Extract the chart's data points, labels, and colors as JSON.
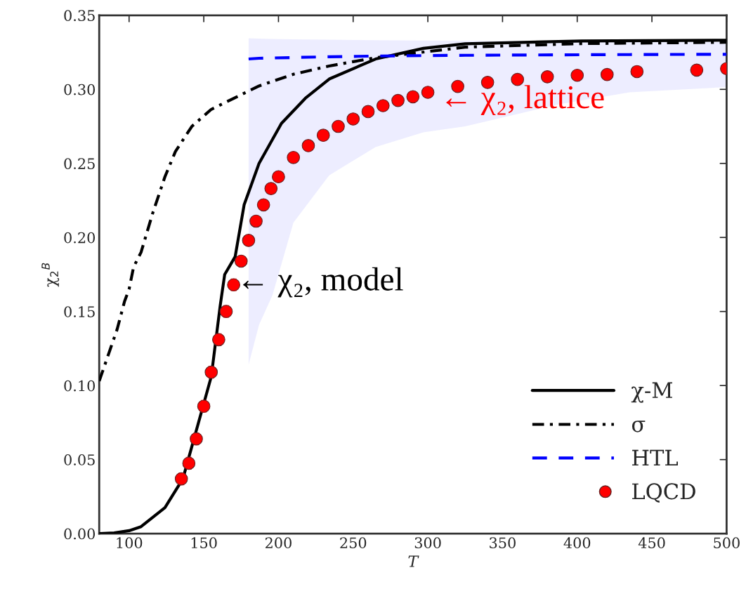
{
  "chart_data": {
    "type": "line",
    "xlabel": "T",
    "ylabel": "χ$_{2}$$^{B}$",
    "xlim": [
      80,
      500
    ],
    "ylim": [
      0,
      0.35
    ],
    "xticks": [
      100,
      150,
      200,
      250,
      300,
      350,
      400,
      450,
      500
    ],
    "yticks": [
      {
        "value": 0,
        "label": "0.00"
      },
      {
        "value": 0.05,
        "label": "0.05"
      },
      {
        "value": 0.1,
        "label": "0.10"
      },
      {
        "value": 0.15,
        "label": "0.15"
      },
      {
        "value": 0.2,
        "label": "0.20"
      },
      {
        "value": 0.25,
        "label": "0.25"
      },
      {
        "value": 0.3,
        "label": "0.30"
      },
      {
        "value": 0.35,
        "label": "0.35"
      }
    ],
    "grid": false,
    "legend": "bottom right",
    "series": [
      {
        "name": "χ-M",
        "color": "#000000",
        "line_style": "solid",
        "x": [
          80,
          90,
          100,
          108,
          124,
          136,
          155,
          161,
          164,
          171,
          177,
          187,
          202,
          218,
          234,
          265,
          297,
          325,
          403,
          500
        ],
        "values": [
          0,
          0.0005,
          0.002,
          0.0047,
          0.0175,
          0.037,
          0.106,
          0.154,
          0.175,
          0.187,
          0.222,
          0.25,
          0.277,
          0.294,
          0.307,
          0.3205,
          0.3277,
          0.3308,
          0.3327,
          0.3332
        ]
      },
      {
        "name": "σ",
        "color": "#000000",
        "line_style": "dashdot",
        "x": [
          80,
          92,
          97,
          100,
          103,
          108,
          116,
          124,
          131,
          142,
          155,
          171,
          187,
          210,
          234,
          265,
          325,
          403,
          500
        ],
        "values": [
          0.103,
          0.138,
          0.157,
          0.165,
          0.18,
          0.19,
          0.217,
          0.241,
          0.258,
          0.275,
          0.2865,
          0.2944,
          0.3023,
          0.3102,
          0.3158,
          0.3214,
          0.3285,
          0.3309,
          0.3318
        ]
      },
      {
        "name": "HTL",
        "color": "#0000ff",
        "line_style": "dashed",
        "x": [
          180,
          187,
          196,
          210,
          234,
          265,
          297,
          325,
          388,
          435,
          500
        ],
        "values": [
          0.3205,
          0.321,
          0.3212,
          0.3215,
          0.322,
          0.3225,
          0.3228,
          0.323,
          0.3233,
          0.3235,
          0.3237
        ],
        "lower": [
          0.114,
          0.141,
          0.161,
          0.21,
          0.242,
          0.261,
          0.271,
          0.275,
          0.29,
          0.298,
          0.3015
        ],
        "upper": [
          0.3345,
          0.3343,
          0.334,
          0.3338,
          0.3335,
          0.3332,
          0.333,
          0.3328,
          0.3325,
          0.3322,
          0.332
        ]
      },
      {
        "name": "LQCD",
        "type": "scatter",
        "color": "#ff0000",
        "marker": "circle",
        "x": [
          135,
          140,
          145,
          150,
          155,
          160,
          165,
          170,
          175,
          180,
          185,
          190,
          195,
          200,
          210,
          220,
          230,
          240,
          250,
          260,
          270,
          280,
          290,
          300,
          320,
          340,
          360,
          380,
          400,
          420,
          440,
          480,
          500
        ],
        "values": [
          0.037,
          0.0475,
          0.064,
          0.086,
          0.109,
          0.131,
          0.15,
          0.168,
          0.184,
          0.198,
          0.211,
          0.222,
          0.233,
          0.241,
          0.254,
          0.262,
          0.269,
          0.275,
          0.28,
          0.285,
          0.289,
          0.2925,
          0.295,
          0.298,
          0.302,
          0.3047,
          0.3067,
          0.3085,
          0.3095,
          0.31,
          0.312,
          0.313,
          0.314
        ],
        "errors": [
          0.004,
          0.004,
          0.004,
          0.004,
          0.004,
          0.004,
          0.004,
          0.004,
          null,
          null,
          null,
          null,
          null,
          null,
          null,
          null,
          null,
          null,
          null,
          null,
          null,
          null,
          null,
          null,
          null,
          null,
          null,
          null,
          null,
          null,
          null,
          null,
          null
        ]
      }
    ],
    "annotations": [
      {
        "text": "← χ₂, model",
        "x": 164,
        "y": 0.175
      },
      {
        "text": "← χ₂, lattice",
        "x": 300,
        "y": 0.298
      }
    ]
  }
}
